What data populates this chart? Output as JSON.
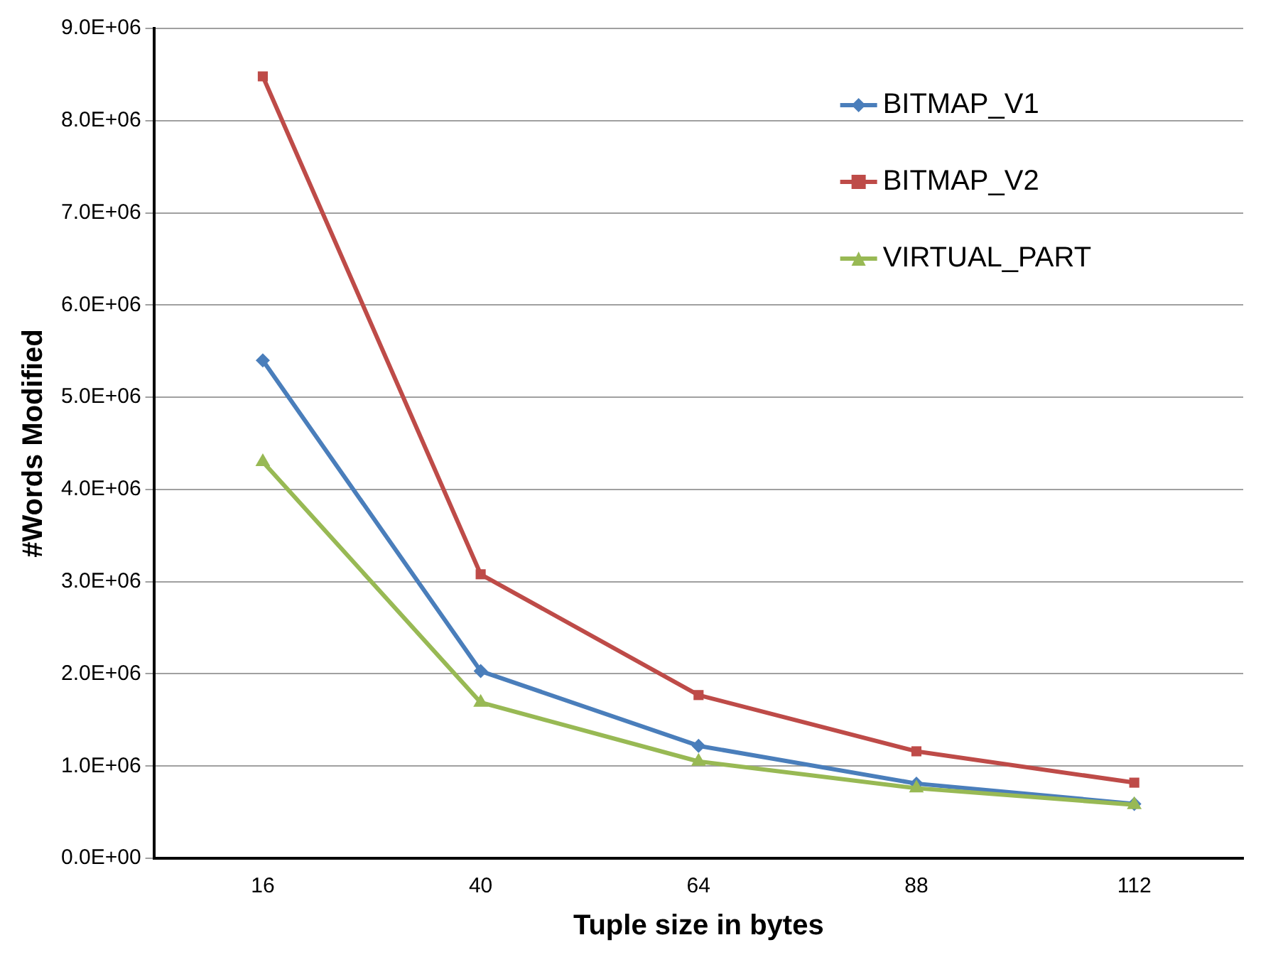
{
  "chart_data": {
    "type": "line",
    "xlabel": "Tuple size in bytes",
    "ylabel": "#Words Modified",
    "categories": [
      "16",
      "40",
      "64",
      "88",
      "112"
    ],
    "series": [
      {
        "name": "BITMAP_V1",
        "color": "#4a7ebb",
        "marker": "diamond",
        "values": [
          5400000,
          2030000,
          1220000,
          810000,
          590000
        ]
      },
      {
        "name": "BITMAP_V2",
        "color": "#be4b48",
        "marker": "square",
        "values": [
          8480000,
          3080000,
          1770000,
          1160000,
          820000
        ]
      },
      {
        "name": "VIRTUAL_PART",
        "color": "#98b954",
        "marker": "triangle",
        "values": [
          4300000,
          1690000,
          1050000,
          760000,
          580000
        ]
      }
    ],
    "ylim": [
      0,
      9000000
    ],
    "yticks": [
      {
        "value": 0,
        "label": "0.0E+00"
      },
      {
        "value": 1000000,
        "label": "1.0E+06"
      },
      {
        "value": 2000000,
        "label": "2.0E+06"
      },
      {
        "value": 3000000,
        "label": "3.0E+06"
      },
      {
        "value": 4000000,
        "label": "4.0E+06"
      },
      {
        "value": 5000000,
        "label": "5.0E+06"
      },
      {
        "value": 6000000,
        "label": "6.0E+06"
      },
      {
        "value": 7000000,
        "label": "7.0E+06"
      },
      {
        "value": 8000000,
        "label": "8.0E+06"
      },
      {
        "value": 9000000,
        "label": "9.0E+06"
      }
    ],
    "grid": "y",
    "legend": "top right",
    "line_style": "solid"
  }
}
